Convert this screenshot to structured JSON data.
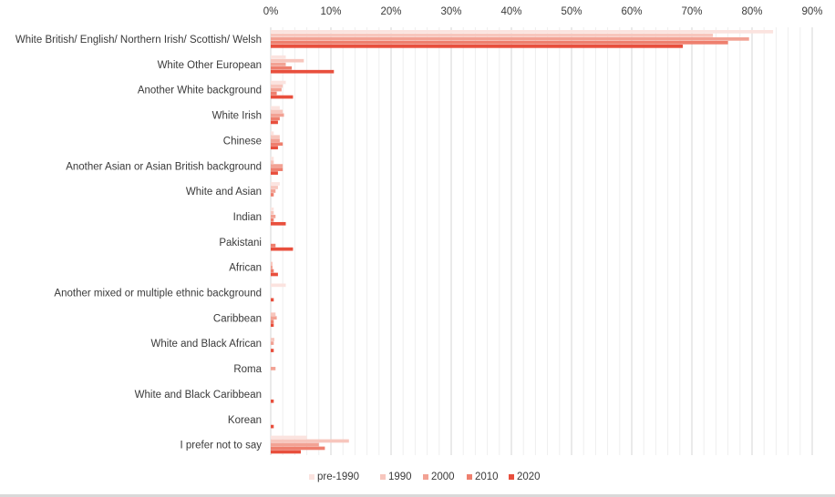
{
  "chart_data": {
    "type": "bar",
    "orientation": "horizontal",
    "title": "",
    "xlabel": "",
    "ylabel": "",
    "xlim": [
      0,
      90
    ],
    "x_ticks": [
      "0%",
      "10%",
      "20%",
      "30%",
      "40%",
      "50%",
      "60%",
      "70%",
      "80%",
      "90%"
    ],
    "grid": true,
    "legend_position": "bottom",
    "categories": [
      "White British/ English/ Northern Irish/ Scottish/ Welsh",
      "White Other European",
      "Another White background",
      "White Irish",
      "Chinese",
      "Another Asian or Asian British background",
      "White and Asian",
      "Indian",
      "Pakistani",
      "African",
      "Another mixed or multiple ethnic background",
      "Caribbean",
      "White and Black African",
      "Roma",
      "White and Black Caribbean",
      "Korean",
      "I prefer not to say"
    ],
    "series": [
      {
        "name": "pre-1990",
        "color": "#fbe3df",
        "values": [
          83.5,
          2.5,
          2.5,
          1.5,
          0.5,
          0.5,
          1.5,
          0.5,
          0,
          0,
          2.5,
          0,
          0,
          0,
          0,
          0,
          6
        ]
      },
      {
        "name": "1990",
        "color": "#f7c6bd",
        "values": [
          73.5,
          5.5,
          2,
          2,
          1.5,
          0.5,
          1.2,
          0.5,
          0,
          0.3,
          0,
          0.8,
          0.6,
          0,
          0,
          0,
          13
        ]
      },
      {
        "name": "2000",
        "color": "#f2a294",
        "values": [
          79.5,
          2.5,
          1.8,
          2.2,
          1.5,
          2,
          0.8,
          0.8,
          0,
          0.3,
          0,
          1,
          0.5,
          0.8,
          0,
          0,
          8
        ]
      },
      {
        "name": "2010",
        "color": "#ee7f6e",
        "values": [
          76,
          3.5,
          1,
          1.5,
          2,
          2,
          0.5,
          0.5,
          0.8,
          0.5,
          0,
          0.5,
          0,
          0,
          0,
          0,
          9
        ]
      },
      {
        "name": "2020",
        "color": "#e84f3d",
        "values": [
          68.5,
          10.5,
          3.7,
          1.2,
          1.2,
          1.2,
          0,
          2.5,
          3.7,
          1.2,
          0.5,
          0.5,
          0.5,
          0,
          0.5,
          0.5,
          5
        ]
      }
    ]
  }
}
